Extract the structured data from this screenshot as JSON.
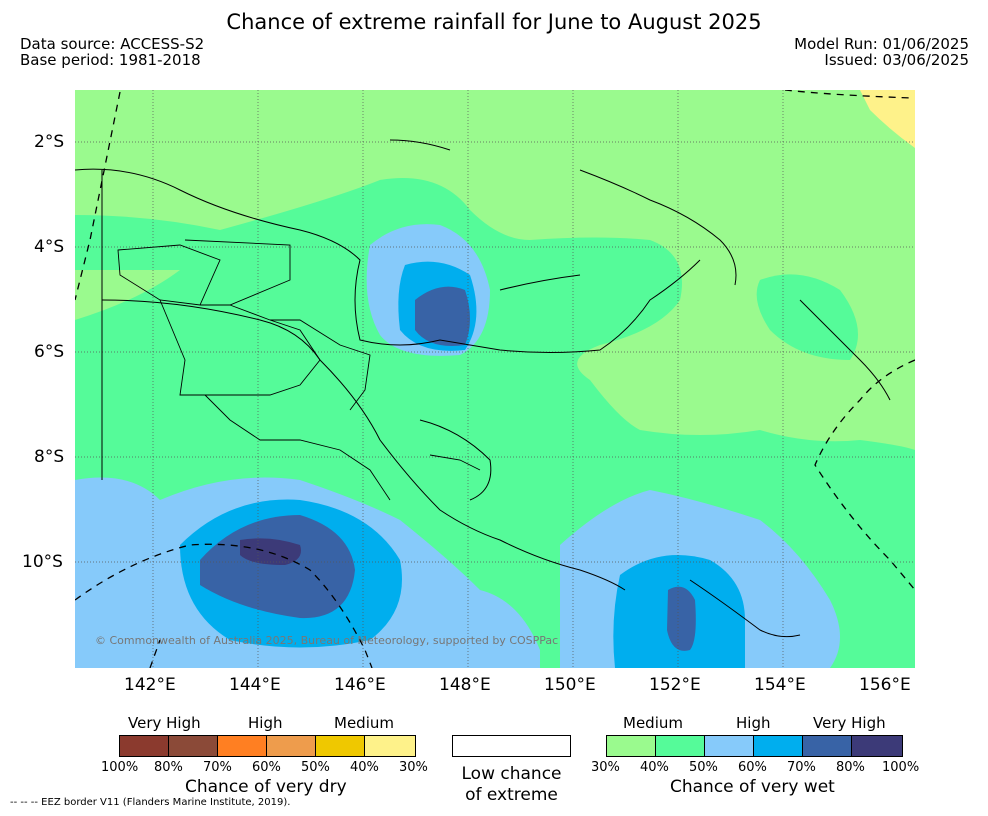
{
  "header": {
    "title": "Chance of extreme rainfall for June to August 2025",
    "data_source": "Data source: ACCESS-S2",
    "base_period": "Base period: 1981-2018",
    "model_run": "Model Run: 01/06/2025",
    "issued": "Issued: 03/06/2025"
  },
  "map": {
    "lat_labels": [
      "2°S",
      "4°S",
      "6°S",
      "8°S",
      "10°S"
    ],
    "lon_labels": [
      "142°E",
      "144°E",
      "146°E",
      "148°E",
      "150°E",
      "152°E",
      "154°E",
      "156°E"
    ],
    "copyright": "© Commonwealth of Australia 2025, Bureau of Meteorology, supported by COSPPac"
  },
  "legend": {
    "dry": {
      "levels": [
        "Very High",
        "High",
        "Medium"
      ],
      "percents": [
        "100%",
        "80%",
        "70%",
        "60%",
        "50%",
        "40%",
        "30%"
      ],
      "caption": "Chance of very dry",
      "colors": [
        "#8b3a2e",
        "#8b4a38",
        "#ff7f22",
        "#ee9c4c",
        "#efc800",
        "#fef28a"
      ]
    },
    "low": {
      "caption_line1": "Low chance",
      "caption_line2": "of extreme",
      "color": "#ffffff"
    },
    "wet": {
      "levels": [
        "Medium",
        "High",
        "Very High"
      ],
      "percents": [
        "30%",
        "40%",
        "50%",
        "60%",
        "70%",
        "80%",
        "100%"
      ],
      "caption": "Chance of very wet",
      "colors": [
        "#9afa8e",
        "#55fb99",
        "#86cafa",
        "#00aeee",
        "#3863a6",
        "#3c3a78"
      ]
    }
  },
  "footer": {
    "eez_note": "--  --  -- EEZ border V11 (Flanders Marine Institute, 2019)."
  }
}
